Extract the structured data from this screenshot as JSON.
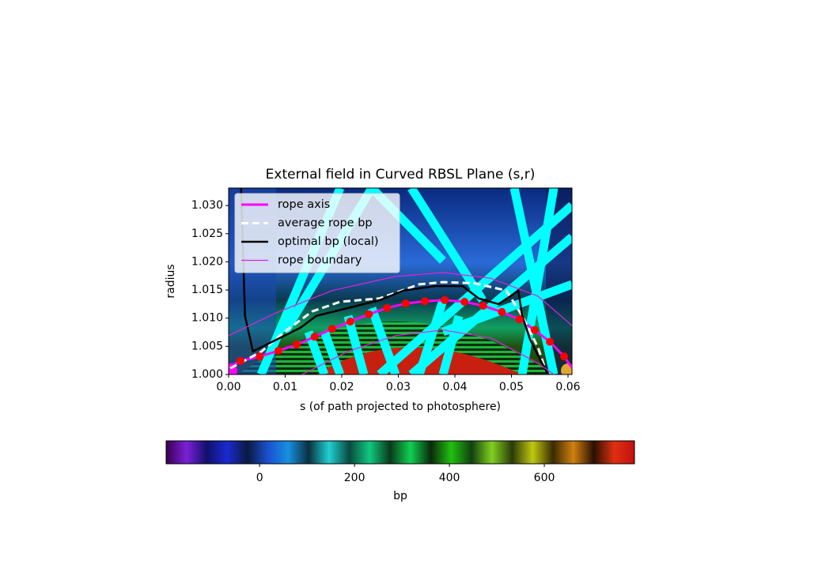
{
  "chart_data": {
    "type": "line",
    "title": "External field in Curved RBSL Plane (s,r)",
    "xlabel": "s (of path projected to photosphere)",
    "ylabel": "radius",
    "xlim": [
      0,
      0.0607
    ],
    "ylim": [
      1.0,
      1.0331
    ],
    "xticks": [
      {
        "value": 0,
        "label": "0.00"
      },
      {
        "value": 0.01,
        "label": "0.01"
      },
      {
        "value": 0.02,
        "label": "0.02"
      },
      {
        "value": 0.03,
        "label": "0.03"
      },
      {
        "value": 0.04,
        "label": "0.04"
      },
      {
        "value": 0.05,
        "label": "0.05"
      },
      {
        "value": 0.06,
        "label": "0.06"
      }
    ],
    "yticks": [
      {
        "value": 1.0,
        "label": "1.000"
      },
      {
        "value": 1.005,
        "label": "1.005"
      },
      {
        "value": 1.01,
        "label": "1.010"
      },
      {
        "value": 1.015,
        "label": "1.015"
      },
      {
        "value": 1.02,
        "label": "1.020"
      },
      {
        "value": 1.025,
        "label": "1.025"
      },
      {
        "value": 1.03,
        "label": "1.030"
      }
    ],
    "legend": "upper left",
    "series": [
      {
        "name": "rope axis",
        "color": "#ff00ff",
        "width": 3,
        "dash": "solid",
        "x": [
          0,
          0.0021,
          0.0055,
          0.0088,
          0.012,
          0.0152,
          0.0183,
          0.0215,
          0.0248,
          0.028,
          0.0313,
          0.0347,
          0.0382,
          0.0417,
          0.045,
          0.0483,
          0.0514,
          0.0541,
          0.0568,
          0.0593,
          0.0607
        ],
        "values": [
          1.0013,
          1.0024,
          1.0032,
          1.0042,
          1.0053,
          1.0067,
          1.0081,
          1.0094,
          1.0107,
          1.0118,
          1.0126,
          1.013,
          1.0132,
          1.0129,
          1.0122,
          1.0111,
          1.0098,
          1.0079,
          1.0058,
          1.0032,
          1.0012
        ]
      },
      {
        "name": "average rope bp",
        "color": "#ffffff",
        "width": 3,
        "dash": "dashed",
        "x": [
          0.0003,
          0.0057,
          0.0099,
          0.0148,
          0.0197,
          0.0267,
          0.0337,
          0.0379,
          0.0435,
          0.0491,
          0.0519,
          0.0547,
          0.0561
        ],
        "values": [
          1.0011,
          1.004,
          1.0076,
          1.0112,
          1.0129,
          1.0135,
          1.016,
          1.0164,
          1.0162,
          1.0149,
          1.0104,
          1.0048,
          1.0006
        ]
      },
      {
        "name": "optimal bp (local)",
        "color": "#000000",
        "width": 2.5,
        "dash": "solid",
        "x": [
          0.0022,
          0.0029,
          0.0043,
          0.0057,
          0.0099,
          0.0127,
          0.0155,
          0.0211,
          0.0267,
          0.0309,
          0.0365,
          0.0414,
          0.0442,
          0.0477,
          0.0498,
          0.0512,
          0.0519,
          0.0533,
          0.0547,
          0.0563
        ],
        "values": [
          1.0331,
          1.0104,
          1.0041,
          1.0048,
          1.0069,
          1.0083,
          1.0104,
          1.0118,
          1.0132,
          1.0149,
          1.0157,
          1.0157,
          1.0135,
          1.0125,
          1.0139,
          1.0149,
          1.0104,
          1.0062,
          1.0034,
          1.0003
        ]
      },
      {
        "name": "rope boundary",
        "color": "#e020e0",
        "width": 1.2,
        "dash": "solid",
        "x": [
          0,
          0.0085,
          0.0183,
          0.0295,
          0.0379,
          0.0463,
          0.0547,
          0.0607,
          null,
          0.013,
          0.0211,
          0.0295,
          0.0379,
          0.0463,
          0.0547,
          0.0575
        ],
        "values": [
          1.0069,
          1.011,
          1.0149,
          1.0174,
          1.0181,
          1.0171,
          1.0139,
          1.0087,
          null,
          1.0,
          1.0041,
          1.0069,
          1.0079,
          1.0065,
          1.002,
          1.0
        ]
      }
    ],
    "markers": {
      "color": "#ff0000",
      "x": [
        0.0021,
        0.0055,
        0.0088,
        0.012,
        0.0152,
        0.0183,
        0.0215,
        0.0248,
        0.028,
        0.0313,
        0.0347,
        0.0382,
        0.0417,
        0.045,
        0.0483,
        0.0514,
        0.0541,
        0.0568,
        0.0593
      ],
      "values": [
        1.0024,
        1.0032,
        1.0042,
        1.0053,
        1.0067,
        1.0081,
        1.0094,
        1.0107,
        1.0118,
        1.0126,
        1.013,
        1.0132,
        1.0129,
        1.0122,
        1.0111,
        1.0098,
        1.0079,
        1.0058,
        1.0032
      ]
    },
    "colorbar": {
      "label": "bp",
      "lim": [
        -197,
        790
      ],
      "ticks": [
        0,
        200,
        400,
        600
      ],
      "colors": [
        "#3a0050",
        "#7a20d8",
        "#12106a",
        "#1a2ad0",
        "#0a1a40",
        "#1a50d0",
        "#1890e0",
        "#0a3040",
        "#20d0d0",
        "#0a4a40",
        "#10c880",
        "#0a3a1a",
        "#10d050",
        "#0a2a0a",
        "#20c010",
        "#104010",
        "#80d020",
        "#2a3a08",
        "#c0c810",
        "#3a2a00",
        "#d08010",
        "#2a1000",
        "#e03010",
        "#c01010"
      ]
    }
  }
}
